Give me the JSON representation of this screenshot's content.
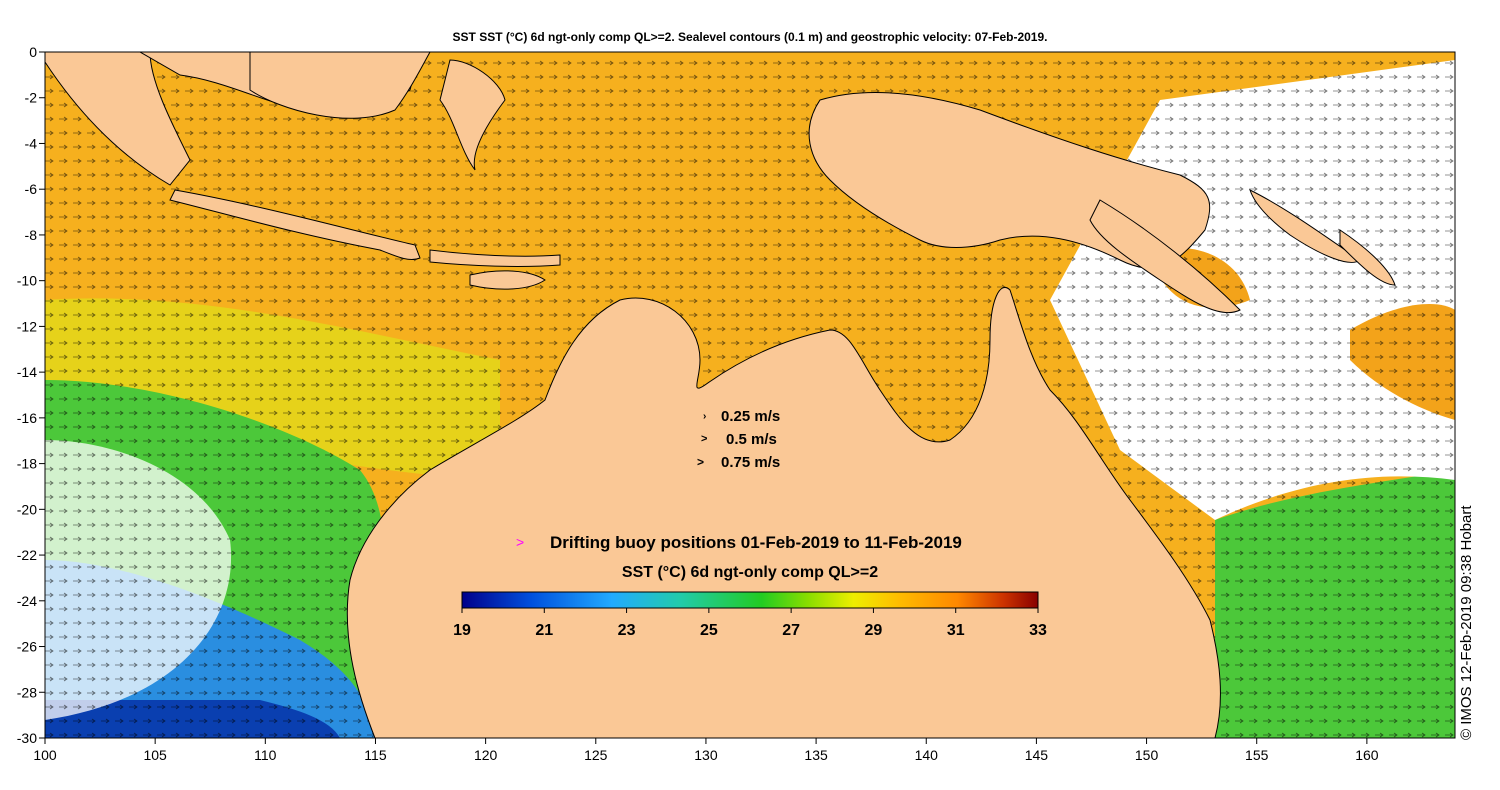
{
  "title": "SST SST (°C) 6d ngt-only comp QL>=2. Sealevel contours (0.1 m) and geostrophic velocity: 07-Feb-2019.",
  "credit": "© IMOS 12-Feb-2019 09:38 Hobart",
  "axes": {
    "x_ticks": [
      "100",
      "105",
      "110",
      "115",
      "120",
      "125",
      "130",
      "135",
      "140",
      "145",
      "150",
      "155",
      "160"
    ],
    "y_ticks": [
      "0",
      "-2",
      "-4",
      "-6",
      "-8",
      "-10",
      "-12",
      "-14",
      "-16",
      "-18",
      "-20",
      "-22",
      "-24",
      "-26",
      "-28",
      "-30"
    ],
    "lon_range": [
      100,
      164
    ],
    "lat_range": [
      -30,
      0
    ]
  },
  "velocity_legend": [
    {
      "label": "0.25 m/s",
      "speed": 0.25
    },
    {
      "label": "0.5 m/s",
      "speed": 0.5
    },
    {
      "label": "0.75 m/s",
      "speed": 0.75
    }
  ],
  "buoy_legend": {
    "symbol": ">",
    "label": "Drifting buoy positions 01-Feb-2019 to 11-Feb-2019",
    "color": "#ff00ff"
  },
  "colorbar": {
    "label": "SST (°C) 6d ngt-only comp QL>=2",
    "ticks": [
      "19",
      "21",
      "23",
      "25",
      "27",
      "29",
      "31",
      "33"
    ],
    "min": 19,
    "max": 33,
    "colors": [
      "#00008b",
      "#0055dd",
      "#22aaff",
      "#22ccbb",
      "#22cc44",
      "#55dd00",
      "#ddee00",
      "#ffcc00",
      "#ff9900",
      "#ee6600",
      "#bb2200",
      "#880000"
    ]
  },
  "colors": {
    "land": "#fac896",
    "no_data": "#ffffff",
    "warm_sea": "#f6b01e",
    "green_sea": "#4cc83a",
    "cool_sea": "#2a8ee0"
  }
}
